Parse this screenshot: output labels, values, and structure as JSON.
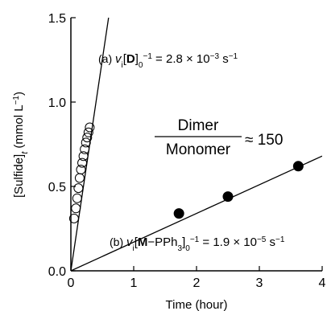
{
  "chart_data": {
    "type": "scatter",
    "xlabel": "Time (hour)",
    "ylabel": {
      "main": "[Sulfide]",
      "sub": "t",
      "unit_pre": " (mmol L",
      "unit_exp": "−1",
      "unit_post": ")"
    },
    "xlim": [
      0,
      4
    ],
    "ylim": [
      0,
      1.5
    ],
    "x_ticks": [
      0,
      1,
      2,
      3,
      4
    ],
    "x_tick_labels": [
      "0",
      "1",
      "2",
      "3",
      "4"
    ],
    "y_ticks": [
      0,
      0.5,
      1.0,
      1.5
    ],
    "y_tick_labels": [
      "0.0",
      "0.5",
      "1.0",
      "1.5"
    ],
    "grid": false,
    "series": [
      {
        "marker": "open-circle",
        "x": [
          0.05,
          0.08,
          0.1,
          0.12,
          0.14,
          0.16,
          0.18,
          0.2,
          0.22,
          0.24,
          0.26,
          0.28,
          0.3
        ],
        "y": [
          0.31,
          0.37,
          0.43,
          0.49,
          0.55,
          0.6,
          0.64,
          0.68,
          0.72,
          0.76,
          0.79,
          0.82,
          0.85
        ],
        "fit_line": {
          "x": [
            0,
            0.6
          ],
          "y": [
            0,
            1.5
          ]
        }
      },
      {
        "marker": "filled-circle",
        "x": [
          1.72,
          2.5,
          3.62
        ],
        "y": [
          0.34,
          0.44,
          0.62
        ],
        "fit_line": {
          "x": [
            0,
            4
          ],
          "y": [
            0,
            0.68
          ]
        }
      }
    ],
    "annotations": {
      "a": {
        "prefix": "(a) ",
        "v": "v",
        "v_sub": "i",
        "bracket_open": "[",
        "species": "D",
        "bracket_close": "]",
        "zero": "0",
        "exp": "−1",
        "value": " = 2.8 × 10",
        "value_exp": "−3",
        "unit": " s",
        "unit_exp": "−1"
      },
      "b": {
        "prefix": "(b) ",
        "v": "v",
        "v_sub": "i",
        "bracket_open": "[",
        "species": "M",
        "dash": "−PPh",
        "sub3": "3",
        "bracket_close": "]",
        "zero": "0",
        "exp": "−1",
        "value": " = 1.9 × 10",
        "value_exp": "−5",
        "unit": " s",
        "unit_exp": "−1"
      },
      "ratio": {
        "numerator": "Dimer",
        "denominator": "Monomer",
        "approx": "≈ 150"
      }
    }
  }
}
